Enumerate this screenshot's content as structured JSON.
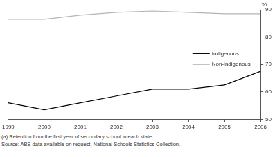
{
  "chart_data": {
    "type": "line",
    "y_label": "%",
    "categories": [
      "1999",
      "2000",
      "2001",
      "2002",
      "2003",
      "2004",
      "2005",
      "2006"
    ],
    "series": [
      {
        "name": "Indigenous",
        "color": "#000000",
        "values": [
          56,
          53.5,
          56,
          58.5,
          61,
          61,
          62.5,
          67.5
        ]
      },
      {
        "name": "Non-indigenous",
        "color": "#b4b4b4",
        "values": [
          86.5,
          86.5,
          88,
          89,
          89.5,
          89,
          88.5,
          88.5
        ]
      }
    ],
    "ylim": [
      50,
      90
    ],
    "yticks": [
      50,
      60,
      70,
      80,
      90
    ],
    "grid": false,
    "legend": "right",
    "footnotes": [
      "(a) Retention from the first year of secondary school in each state.",
      "Source: ABS data available on request, National Schools Statistics Collection."
    ]
  }
}
